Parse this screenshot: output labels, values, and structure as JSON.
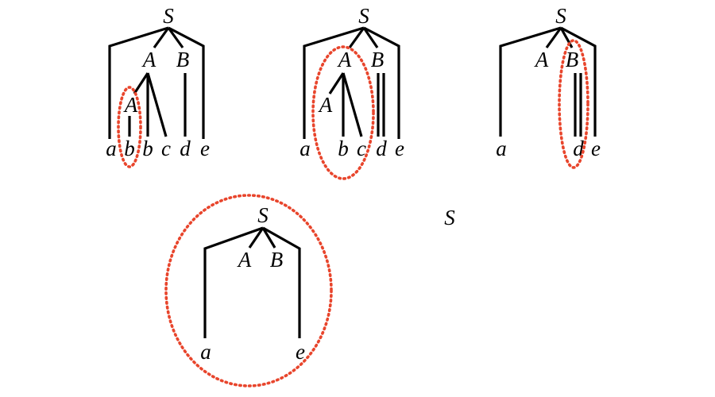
{
  "colors": {
    "ink": "#000000",
    "highlight": "#e8452c"
  },
  "trees": [
    {
      "labels": {
        "S": "S",
        "A": "A",
        "B": "B",
        "inner_A": "A"
      },
      "leaves": [
        "a",
        "b",
        "b",
        "c",
        "d",
        "e"
      ]
    },
    {
      "labels": {
        "S": "S",
        "A": "A",
        "B": "B",
        "inner_A": "A"
      },
      "leaves": [
        "a",
        "b",
        "c",
        "d",
        "e"
      ]
    },
    {
      "labels": {
        "S": "S",
        "A": "A",
        "B": "B"
      },
      "leaves": [
        "a",
        "d",
        "e"
      ]
    },
    {
      "labels": {
        "S": "S",
        "A": "A",
        "B": "B"
      },
      "leaves": [
        "a",
        "e"
      ]
    },
    {
      "labels": {
        "S": "S"
      }
    }
  ]
}
